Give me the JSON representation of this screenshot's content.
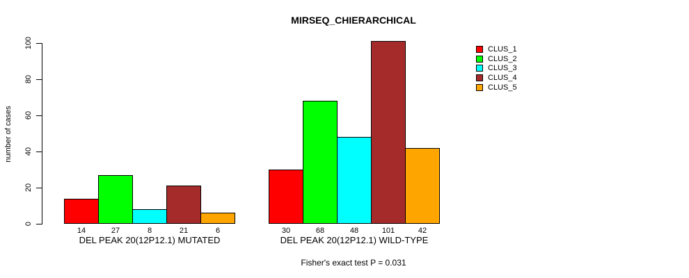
{
  "title": "MIRSEQ_CHIERARCHICAL",
  "y_axis": {
    "label": "number of cases",
    "ticks": [
      0,
      20,
      40,
      60,
      80,
      100
    ]
  },
  "footer": "Fisher's exact test P = 0.031",
  "chart_data": {
    "type": "bar",
    "title": "MIRSEQ_CHIERARCHICAL",
    "xlabel": "",
    "ylabel": "number of cases",
    "ylim": [
      0,
      105
    ],
    "yticks": [
      0,
      20,
      40,
      60,
      80,
      100
    ],
    "grid": false,
    "legend_position": "right",
    "bar_value_labels_shown": true,
    "categories": [
      "DEL PEAK 20(12P12.1) MUTATED",
      "DEL PEAK 20(12P12.1) WILD-TYPE"
    ],
    "series": [
      {
        "name": "CLUS_1",
        "color": "#FF0000",
        "values": [
          14,
          30
        ]
      },
      {
        "name": "CLUS_2",
        "color": "#00FF00",
        "values": [
          27,
          68
        ]
      },
      {
        "name": "CLUS_3",
        "color": "#00FFFF",
        "values": [
          8,
          48
        ]
      },
      {
        "name": "CLUS_4",
        "color": "#A52A2A",
        "values": [
          21,
          101
        ]
      },
      {
        "name": "CLUS_5",
        "color": "#FFA500",
        "values": [
          6,
          42
        ]
      }
    ],
    "annotation": "Fisher's exact test P = 0.031"
  }
}
